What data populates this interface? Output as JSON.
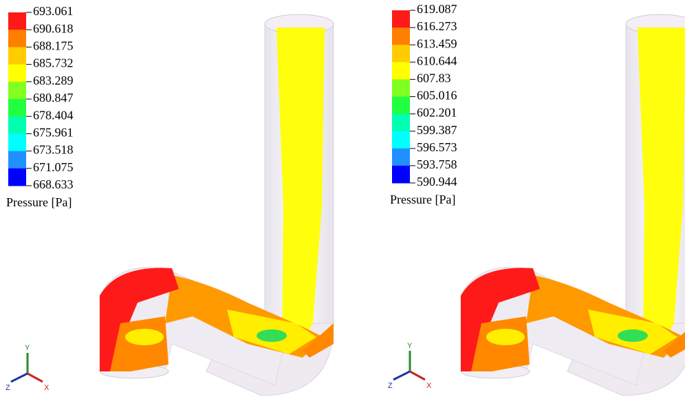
{
  "panels": [
    {
      "legend": {
        "labels": [
          "693.061",
          "690.618",
          "688.175",
          "685.732",
          "683.289",
          "680.847",
          "678.404",
          "675.961",
          "673.518",
          "671.075",
          "668.633"
        ],
        "title": "Pressure [Pa]"
      },
      "triad": {
        "y": "Y",
        "z": "Z",
        "x": "X"
      }
    },
    {
      "legend": {
        "labels": [
          "619.087",
          "616.273",
          "613.459",
          "610.644",
          "607.83",
          "605.016",
          "602.201",
          "599.387",
          "596.573",
          "593.758",
          "590.944"
        ],
        "title": "Pressure [Pa]"
      },
      "triad": {
        "y": "Y",
        "z": "Z",
        "x": "X"
      }
    }
  ]
}
